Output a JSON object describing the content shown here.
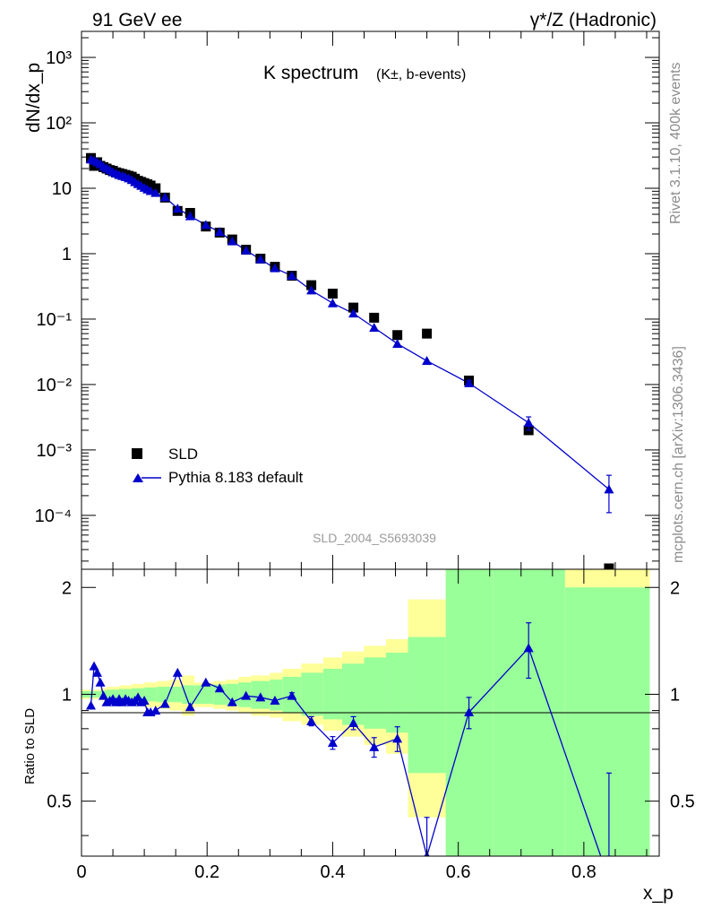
{
  "header": {
    "left": "91 GeV ee",
    "right": "γ*/Z (Hadronic)"
  },
  "side_text": {
    "rivet": "Rivet 3.1.10,  400k events",
    "mcplots": "mcplots.cern.ch [arXiv:1306.3436]"
  },
  "colors": {
    "mc": "#0000cc",
    "data": "#000000",
    "band_inner": "#99ff99",
    "band_outer": "#ffff99",
    "watermark": "#9a9a9a"
  },
  "chart_data": [
    {
      "type": "scatter",
      "title": "K spectrum",
      "title_sub": "(K±, b-events)",
      "ylabel": "dN/dx_p",
      "yscale": "log",
      "ylim": [
        1.5e-05,
        2500
      ],
      "xlim": [
        0,
        0.92
      ],
      "y_tick_labels": [
        "10⁻⁴",
        "10⁻³",
        "10⁻²",
        "10⁻¹",
        "1",
        "10",
        "10²",
        "10³"
      ],
      "watermark": "SLD_2004_S5693039",
      "legend": {
        "position": "bottom-left",
        "entries": [
          "SLD",
          "Pythia 8.183 default"
        ]
      },
      "series": [
        {
          "name": "SLD",
          "style": "square-markers",
          "x": [
            0.015,
            0.02,
            0.025,
            0.03,
            0.035,
            0.04,
            0.045,
            0.05,
            0.055,
            0.06,
            0.065,
            0.07,
            0.075,
            0.08,
            0.085,
            0.09,
            0.095,
            0.1,
            0.105,
            0.11,
            0.118,
            0.133,
            0.153,
            0.173,
            0.198,
            0.22,
            0.24,
            0.262,
            0.285,
            0.308,
            0.335,
            0.366,
            0.4,
            0.433,
            0.466,
            0.503,
            0.55,
            0.617,
            0.712,
            0.84
          ],
          "y": [
            29,
            22,
            25,
            22,
            21,
            20,
            19,
            18.5,
            17.5,
            17,
            16.5,
            16,
            15.5,
            15,
            14,
            13,
            12.5,
            12,
            11.5,
            11,
            10,
            7.2,
            4.5,
            4.2,
            2.6,
            2.1,
            1.65,
            1.15,
            0.84,
            0.63,
            0.46,
            0.33,
            0.245,
            0.15,
            0.105,
            0.057,
            0.06,
            0.0115,
            0.002,
            1.2e-05
          ]
        },
        {
          "name": "Pythia 8.183 default",
          "style": "triangle-line",
          "x": [
            0.015,
            0.02,
            0.025,
            0.03,
            0.035,
            0.04,
            0.045,
            0.05,
            0.055,
            0.06,
            0.065,
            0.07,
            0.075,
            0.08,
            0.085,
            0.09,
            0.095,
            0.1,
            0.105,
            0.11,
            0.118,
            0.133,
            0.153,
            0.173,
            0.198,
            0.22,
            0.24,
            0.262,
            0.285,
            0.308,
            0.335,
            0.366,
            0.4,
            0.433,
            0.466,
            0.503,
            0.55,
            0.617,
            0.712,
            0.84
          ],
          "y": [
            27.5,
            26.5,
            25,
            23.5,
            21.5,
            20.2,
            19,
            17.6,
            16.8,
            16,
            15.4,
            14.9,
            14.2,
            13.4,
            12.4,
            11.6,
            10.9,
            10.2,
            9.6,
            9.1,
            8.5,
            7.3,
            4.9,
            3.75,
            2.75,
            2.15,
            1.55,
            1.12,
            0.82,
            0.6,
            0.46,
            0.275,
            0.175,
            0.122,
            0.074,
            0.042,
            0.023,
            0.0105,
            0.0026,
            0.00025
          ],
          "y_err_low": [
            0,
            0,
            0,
            0,
            0,
            0,
            0,
            0,
            0,
            0,
            0,
            0,
            0,
            0,
            0,
            0,
            0,
            0,
            0,
            0,
            0,
            0,
            0,
            0,
            0,
            0,
            0,
            0,
            0,
            0,
            0,
            0,
            0,
            0,
            0,
            0,
            0,
            0.001,
            0.0006,
            0.00014
          ],
          "y_err_high": [
            0,
            0,
            0,
            0,
            0,
            0,
            0,
            0,
            0,
            0,
            0,
            0,
            0,
            0,
            0,
            0,
            0,
            0,
            0,
            0,
            0,
            0,
            0,
            0,
            0,
            0,
            0,
            0,
            0,
            0,
            0,
            0,
            0,
            0,
            0,
            0,
            0,
            0.001,
            0.0006,
            0.00016
          ]
        }
      ]
    },
    {
      "type": "line",
      "ylabel": "Ratio to SLD",
      "xlabel": "x_p",
      "ylim": [
        0.35,
        2.25
      ],
      "xlim": [
        0,
        0.92
      ],
      "x_tick_labels": [
        "0",
        "0.2",
        "0.4",
        "0.6",
        "0.8"
      ],
      "y_tick_labels": [
        "0.5",
        "1",
        "2"
      ],
      "reference_line": 1,
      "bands": {
        "edges": [
          0.0,
          0.03,
          0.04,
          0.06,
          0.08,
          0.1,
          0.12,
          0.14,
          0.16,
          0.18,
          0.21,
          0.23,
          0.25,
          0.27,
          0.3,
          0.32,
          0.35,
          0.385,
          0.415,
          0.45,
          0.485,
          0.52,
          0.58,
          0.655,
          0.77,
          0.905
        ],
        "inner_low": [
          0.98,
          0.975,
          0.97,
          0.965,
          0.96,
          0.955,
          0.95,
          0.95,
          0.94,
          0.94,
          0.935,
          0.93,
          0.92,
          0.91,
          0.9,
          0.89,
          0.87,
          0.85,
          0.82,
          0.8,
          0.78,
          0.6,
          0.3,
          0.3,
          0.3
        ],
        "inner_high": [
          1.02,
          1.025,
          1.03,
          1.035,
          1.04,
          1.045,
          1.05,
          1.05,
          1.06,
          1.06,
          1.065,
          1.07,
          1.08,
          1.09,
          1.1,
          1.12,
          1.15,
          1.18,
          1.22,
          1.27,
          1.31,
          1.45,
          2.4,
          2.4,
          2.0
        ],
        "outer_low": [
          0.97,
          0.96,
          0.95,
          0.94,
          0.93,
          0.92,
          0.91,
          0.9,
          0.87,
          0.92,
          0.91,
          0.9,
          0.89,
          0.87,
          0.86,
          0.84,
          0.82,
          0.79,
          0.76,
          0.72,
          0.68,
          0.45,
          0.3,
          0.3,
          0.3
        ],
        "outer_high": [
          1.03,
          1.04,
          1.05,
          1.06,
          1.07,
          1.08,
          1.09,
          1.1,
          1.13,
          1.08,
          1.09,
          1.1,
          1.12,
          1.13,
          1.15,
          1.18,
          1.22,
          1.27,
          1.32,
          1.37,
          1.43,
          1.85,
          2.4,
          2.4,
          2.4
        ]
      },
      "series": [
        {
          "name": "Pythia 8.183 default",
          "x": [
            0.015,
            0.02,
            0.025,
            0.03,
            0.035,
            0.04,
            0.045,
            0.05,
            0.055,
            0.06,
            0.065,
            0.07,
            0.075,
            0.08,
            0.085,
            0.09,
            0.095,
            0.1,
            0.105,
            0.11,
            0.118,
            0.133,
            0.153,
            0.173,
            0.198,
            0.22,
            0.24,
            0.262,
            0.285,
            0.308,
            0.335,
            0.366,
            0.4,
            0.433,
            0.466,
            0.503,
            0.55,
            0.617,
            0.712,
            0.84
          ],
          "y": [
            0.93,
            1.2,
            1.15,
            1.08,
            0.99,
            0.95,
            0.96,
            0.97,
            0.95,
            0.97,
            0.95,
            0.97,
            0.96,
            0.95,
            0.96,
            0.98,
            0.95,
            0.96,
            0.89,
            0.89,
            0.9,
            0.94,
            1.15,
            0.92,
            1.08,
            1.04,
            0.95,
            0.99,
            0.98,
            0.96,
            0.99,
            0.84,
            0.73,
            0.83,
            0.71,
            0.75,
            0.35,
            0.89,
            1.35,
            0.3
          ],
          "y_err": [
            0,
            0,
            0,
            0,
            0,
            0,
            0,
            0,
            0,
            0,
            0,
            0,
            0,
            0,
            0,
            0,
            0,
            0,
            0,
            0,
            0,
            0,
            0,
            0,
            0,
            0,
            0,
            0,
            0,
            0,
            0.02,
            0.025,
            0.03,
            0.035,
            0.045,
            0.06,
            0.1,
            0.09,
            0.24,
            0.3
          ]
        }
      ]
    }
  ]
}
